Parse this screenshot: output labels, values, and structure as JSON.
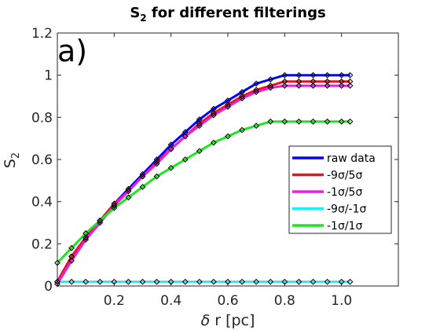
{
  "chart_data": {
    "type": "line",
    "title": "S_2 for different filterings",
    "panel_label": "a)",
    "xlabel": "δ r [pc]",
    "ylabel": "S_2",
    "xlim": [
      0,
      1.2
    ],
    "ylim": [
      0,
      1.2
    ],
    "xticks": [
      0.2,
      0.4,
      0.6,
      0.8,
      1.0
    ],
    "xtick_labels": [
      "0.2",
      "0.4",
      "0.6",
      "0.8",
      "1.0"
    ],
    "yticks": [
      0,
      0.2,
      0.4,
      0.6,
      0.8,
      1.0,
      1.2
    ],
    "ytick_labels": [
      "0",
      "0.2",
      "0.4",
      "0.6",
      "0.8",
      "1",
      "1.2"
    ],
    "grid": false,
    "legend_position": "right",
    "marker": "diamond",
    "x": [
      0,
      0.05,
      0.1,
      0.15,
      0.2,
      0.25,
      0.3,
      0.35,
      0.4,
      0.45,
      0.5,
      0.55,
      0.6,
      0.65,
      0.7,
      0.75,
      0.8,
      0.85,
      0.9,
      0.95,
      1.0,
      1.03
    ],
    "series": [
      {
        "name": "raw data",
        "color": "#0000ff",
        "values": [
          0.02,
          0.14,
          0.23,
          0.31,
          0.39,
          0.46,
          0.53,
          0.6,
          0.67,
          0.73,
          0.79,
          0.84,
          0.88,
          0.92,
          0.96,
          0.98,
          1.0,
          1.0,
          1.0,
          1.0,
          1.0,
          1.0
        ]
      },
      {
        "name": "-9σ/5σ",
        "color": "#e8141c",
        "values": [
          0.02,
          0.14,
          0.23,
          0.31,
          0.39,
          0.45,
          0.52,
          0.59,
          0.65,
          0.71,
          0.77,
          0.82,
          0.86,
          0.9,
          0.93,
          0.95,
          0.97,
          0.97,
          0.97,
          0.97,
          0.97,
          0.97
        ]
      },
      {
        "name": "-1σ/5σ",
        "color": "#e61ee6",
        "values": [
          0.01,
          0.12,
          0.22,
          0.3,
          0.38,
          0.45,
          0.52,
          0.58,
          0.65,
          0.71,
          0.76,
          0.81,
          0.85,
          0.89,
          0.92,
          0.94,
          0.95,
          0.95,
          0.95,
          0.95,
          0.95,
          0.95
        ]
      },
      {
        "name": "-9σ/-1σ",
        "color": "#1ef0f0",
        "values": [
          0.02,
          0.02,
          0.02,
          0.02,
          0.02,
          0.02,
          0.02,
          0.02,
          0.02,
          0.02,
          0.02,
          0.02,
          0.02,
          0.02,
          0.02,
          0.02,
          0.02,
          0.02,
          0.02,
          0.02,
          0.02,
          0.02
        ]
      },
      {
        "name": "-1σ/1σ",
        "color": "#1ee61e",
        "values": [
          0.11,
          0.18,
          0.25,
          0.31,
          0.37,
          0.42,
          0.47,
          0.52,
          0.56,
          0.6,
          0.64,
          0.68,
          0.71,
          0.74,
          0.76,
          0.78,
          0.78,
          0.78,
          0.78,
          0.78,
          0.78,
          0.78
        ]
      }
    ]
  }
}
